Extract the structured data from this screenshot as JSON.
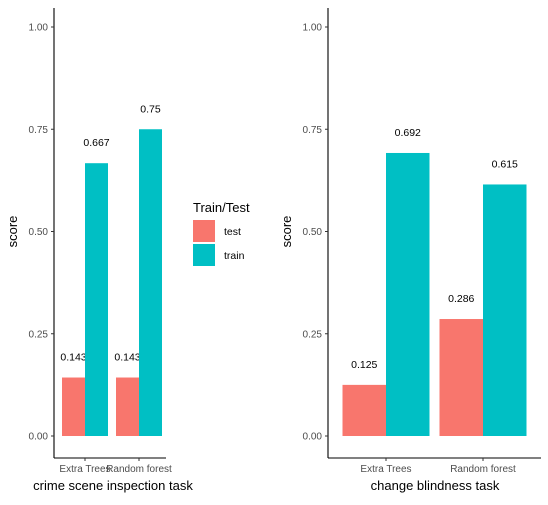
{
  "chart_data": [
    {
      "type": "bar",
      "xlabel": "crime scene inspection task",
      "ylabel": "score",
      "categories": [
        "Extra Trees",
        "Random forest"
      ],
      "series": [
        {
          "name": "test",
          "values": [
            0.143,
            0.143
          ],
          "labels": [
            "0.143",
            "0.143"
          ]
        },
        {
          "name": "train",
          "values": [
            0.667,
            0.75
          ],
          "labels": [
            "0.667",
            "0.75"
          ]
        }
      ],
      "ylim": [
        0,
        1.0
      ],
      "yticks": [
        "0.00",
        "0.25",
        "0.50",
        "0.75",
        "1.00"
      ],
      "grid": false
    },
    {
      "type": "bar",
      "xlabel": "change blindness task",
      "ylabel": "score",
      "categories": [
        "Extra Trees",
        "Random forest"
      ],
      "series": [
        {
          "name": "test",
          "values": [
            0.125,
            0.286
          ],
          "labels": [
            "0.125",
            "0.286"
          ]
        },
        {
          "name": "train",
          "values": [
            0.692,
            0.615
          ],
          "labels": [
            "0.692",
            "0.615"
          ]
        }
      ],
      "ylim": [
        0,
        1.0
      ],
      "yticks": [
        "0.00",
        "0.25",
        "0.50",
        "0.75",
        "1.00"
      ],
      "grid": false
    }
  ],
  "legend": {
    "title": "Train/Test",
    "placement": "between-panels",
    "items": [
      {
        "label": "test",
        "color": "#F8766D"
      },
      {
        "label": "train",
        "color": "#00BFC4"
      }
    ]
  },
  "colors": {
    "test": "#F8766D",
    "train": "#00BFC4"
  }
}
